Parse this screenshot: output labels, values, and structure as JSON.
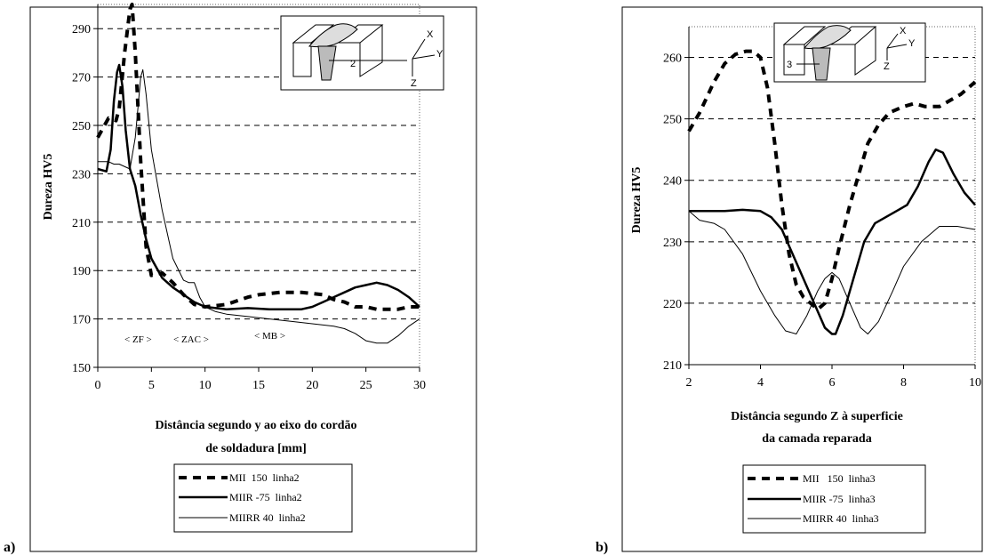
{
  "chart_data": [
    {
      "type": "line",
      "panel_label": "a)",
      "ylabel": "Dureza HV5",
      "xlabel_lines": [
        "Distância segundo y ao eixo do cordão",
        "de soldadura [mm]"
      ],
      "xlim": [
        0,
        30
      ],
      "ylim": [
        150,
        300
      ],
      "xticks": [
        "0",
        "5",
        "10",
        "15",
        "20",
        "25",
        "30"
      ],
      "yticks": [
        "150",
        "170",
        "190",
        "210",
        "230",
        "250",
        "270",
        "290"
      ],
      "zone_labels": [
        "< ZF >",
        "< ZAC >",
        "< MB >"
      ],
      "inset_labels": [
        "2",
        "X",
        "Y",
        "Z"
      ],
      "series": [
        {
          "name": "MII  150  linha2",
          "style": "dashed-thick",
          "points": [
            [
              0,
              245
            ],
            [
              1,
              253
            ],
            [
              1.7,
              252
            ],
            [
              2,
              257
            ],
            [
              2.5,
              280
            ],
            [
              3,
              298
            ],
            [
              3.2,
              300
            ],
            [
              3.5,
              280
            ],
            [
              4,
              235
            ],
            [
              4.5,
              200
            ],
            [
              5,
              188
            ],
            [
              6,
              189
            ],
            [
              7,
              185
            ],
            [
              8,
              180
            ],
            [
              9,
              176
            ],
            [
              10,
              175
            ],
            [
              12,
              176
            ],
            [
              14,
              179
            ],
            [
              15,
              180
            ],
            [
              17,
              181
            ],
            [
              19,
              181
            ],
            [
              21,
              180
            ],
            [
              22,
              178
            ],
            [
              23,
              177
            ],
            [
              24,
              175
            ],
            [
              25,
              175
            ],
            [
              26,
              174
            ],
            [
              27,
              174
            ],
            [
              28,
              174
            ],
            [
              29,
              175
            ],
            [
              30,
              175
            ]
          ]
        },
        {
          "name": "MIIR -75  linha2",
          "style": "solid-thick",
          "points": [
            [
              0,
              232
            ],
            [
              0.8,
              231
            ],
            [
              1.2,
              240
            ],
            [
              1.5,
              260
            ],
            [
              1.8,
              272
            ],
            [
              2,
              275
            ],
            [
              2.3,
              266
            ],
            [
              2.6,
              248
            ],
            [
              3,
              232
            ],
            [
              3.5,
              225
            ],
            [
              4,
              213
            ],
            [
              4.5,
              203
            ],
            [
              5,
              195
            ],
            [
              6,
              187
            ],
            [
              7,
              183
            ],
            [
              8,
              180
            ],
            [
              9,
              177
            ],
            [
              10,
              175
            ],
            [
              12,
              174
            ],
            [
              14,
              174.5
            ],
            [
              16,
              174
            ],
            [
              18,
              174
            ],
            [
              19,
              174
            ],
            [
              20,
              175
            ],
            [
              21,
              177
            ],
            [
              22,
              179
            ],
            [
              23,
              181
            ],
            [
              24,
              183
            ],
            [
              25,
              184
            ],
            [
              26,
              185
            ],
            [
              27,
              184
            ],
            [
              28,
              182
            ],
            [
              29,
              179
            ],
            [
              30,
              175
            ]
          ]
        },
        {
          "name": "MIIRR 40  linha2",
          "style": "solid-thin",
          "points": [
            [
              0,
              235
            ],
            [
              1,
              235
            ],
            [
              1.5,
              234
            ],
            [
              2,
              234
            ],
            [
              3,
              232
            ],
            [
              3.5,
              245
            ],
            [
              4,
              270
            ],
            [
              4.2,
              273
            ],
            [
              4.5,
              263
            ],
            [
              5,
              240
            ],
            [
              6,
              215
            ],
            [
              7,
              195
            ],
            [
              8,
              186
            ],
            [
              8.5,
              185
            ],
            [
              9,
              185
            ],
            [
              9.5,
              179
            ],
            [
              10,
              175
            ],
            [
              11,
              173
            ],
            [
              12,
              172
            ],
            [
              14,
              171
            ],
            [
              16,
              170
            ],
            [
              18,
              169
            ],
            [
              20,
              168
            ],
            [
              22,
              167
            ],
            [
              23,
              166
            ],
            [
              24,
              164
            ],
            [
              25,
              161
            ],
            [
              26,
              160
            ],
            [
              27,
              160
            ],
            [
              28,
              163
            ],
            [
              29,
              167
            ],
            [
              30,
              170
            ]
          ]
        }
      ]
    },
    {
      "type": "line",
      "panel_label": "b)",
      "ylabel": "Dureza HV5",
      "xlabel_lines": [
        "Distância segundo Z à superficie",
        "da camada reparada"
      ],
      "xlim": [
        2,
        10
      ],
      "ylim": [
        210,
        265
      ],
      "xticks": [
        "2",
        "4",
        "6",
        "8",
        "10"
      ],
      "yticks": [
        "210",
        "220",
        "230",
        "240",
        "250",
        "260"
      ],
      "inset_labels": [
        "3",
        "X",
        "Y",
        "Z"
      ],
      "series": [
        {
          "name": "MII   150  linha3",
          "style": "dashed-thick",
          "points": [
            [
              2,
              248
            ],
            [
              2.3,
              251
            ],
            [
              2.7,
              256
            ],
            [
              3,
              259
            ],
            [
              3.3,
              260.5
            ],
            [
              3.6,
              261
            ],
            [
              3.8,
              261
            ],
            [
              4,
              260
            ],
            [
              4.2,
              255
            ],
            [
              4.4,
              246
            ],
            [
              4.6,
              236
            ],
            [
              4.8,
              228
            ],
            [
              5,
              223
            ],
            [
              5.2,
              221
            ],
            [
              5.4,
              220
            ],
            [
              5.6,
              219
            ],
            [
              5.8,
              220
            ],
            [
              6,
              224
            ],
            [
              6.2,
              229
            ],
            [
              6.5,
              236
            ],
            [
              6.8,
              242
            ],
            [
              7,
              246
            ],
            [
              7.3,
              249
            ],
            [
              7.6,
              251
            ],
            [
              8,
              252
            ],
            [
              8.3,
              252.5
            ],
            [
              8.6,
              252
            ],
            [
              9,
              252
            ],
            [
              9.3,
              253
            ],
            [
              9.6,
              254
            ],
            [
              10,
              256
            ]
          ]
        },
        {
          "name": "MIIR -75  linha3",
          "style": "solid-thick",
          "points": [
            [
              2,
              235
            ],
            [
              2.5,
              235
            ],
            [
              3,
              235
            ],
            [
              3.5,
              235.2
            ],
            [
              4,
              235
            ],
            [
              4.3,
              234
            ],
            [
              4.6,
              232
            ],
            [
              4.9,
              228
            ],
            [
              5.2,
              224
            ],
            [
              5.5,
              220
            ],
            [
              5.8,
              216
            ],
            [
              6,
              215
            ],
            [
              6.1,
              215
            ],
            [
              6.3,
              218
            ],
            [
              6.6,
              224
            ],
            [
              6.9,
              230
            ],
            [
              7.2,
              233
            ],
            [
              7.5,
              234
            ],
            [
              7.8,
              235
            ],
            [
              8.1,
              236
            ],
            [
              8.4,
              239
            ],
            [
              8.7,
              243
            ],
            [
              8.9,
              245
            ],
            [
              9.1,
              244.5
            ],
            [
              9.4,
              241
            ],
            [
              9.7,
              238
            ],
            [
              10,
              236
            ]
          ]
        },
        {
          "name": "MIIRR 40  linha3",
          "style": "solid-thin",
          "points": [
            [
              2,
              235
            ],
            [
              2.3,
              233.5
            ],
            [
              2.7,
              233
            ],
            [
              3,
              232
            ],
            [
              3.5,
              228
            ],
            [
              4,
              222
            ],
            [
              4.4,
              218
            ],
            [
              4.7,
              215.5
            ],
            [
              5,
              215
            ],
            [
              5.3,
              218
            ],
            [
              5.6,
              222
            ],
            [
              5.8,
              224
            ],
            [
              6,
              225
            ],
            [
              6.2,
              224
            ],
            [
              6.5,
              220
            ],
            [
              6.8,
              216
            ],
            [
              7,
              215
            ],
            [
              7.3,
              217
            ],
            [
              7.7,
              222
            ],
            [
              8,
              226
            ],
            [
              8.5,
              230
            ],
            [
              9,
              232.5
            ],
            [
              9.5,
              232.5
            ],
            [
              10,
              232
            ]
          ]
        }
      ]
    }
  ]
}
